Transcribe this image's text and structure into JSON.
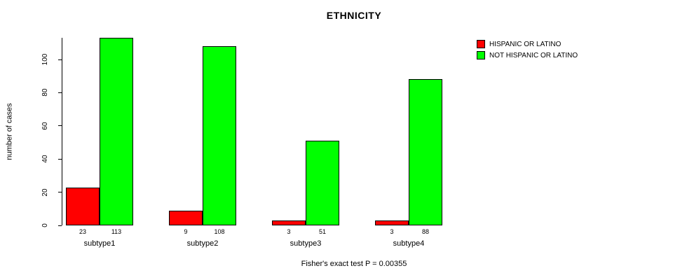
{
  "chart_data": {
    "type": "bar",
    "title": "ETHNICITY",
    "xlabel": "",
    "ylabel": "number of cases",
    "categories": [
      "subtype1",
      "subtype2",
      "subtype3",
      "subtype4"
    ],
    "series": [
      {
        "name": "HISPANIC OR LATINO",
        "color": "#ff0000",
        "values": [
          23,
          9,
          3,
          3
        ]
      },
      {
        "name": "NOT HISPANIC OR LATINO",
        "color": "#00ff00",
        "values": [
          113,
          108,
          51,
          88
        ]
      }
    ],
    "yticks": [
      0,
      20,
      40,
      60,
      80,
      100
    ],
    "ylim": [
      0,
      113
    ],
    "grid": false,
    "legend_position": "top-right",
    "bar_border_color": "#000000",
    "annotation": "Fisher's exact test P = 0.00355"
  }
}
